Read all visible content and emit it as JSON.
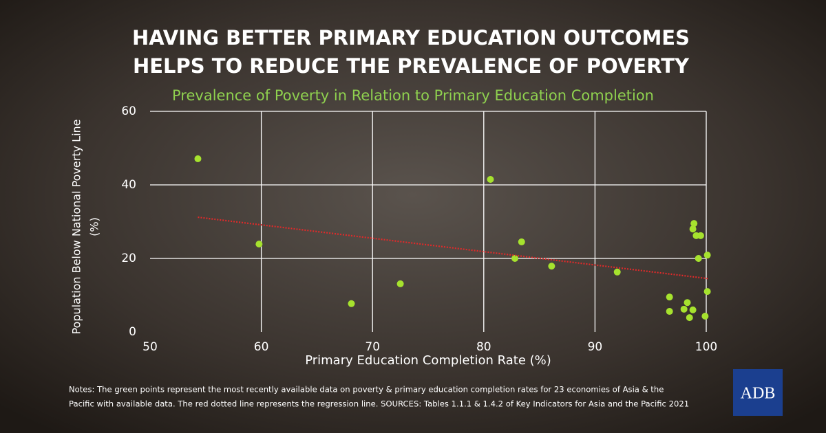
{
  "chart_data": {
    "type": "scatter",
    "title_lines": [
      "HAVING BETTER PRIMARY EDUCATION OUTCOMES",
      "HELPS TO REDUCE THE PREVALENCE OF POVERTY"
    ],
    "subtitle": "Prevalence of Poverty in Relation to Primary Education Completion",
    "xlabel": "Primary Education Completion Rate (%)",
    "ylabel_lines": [
      "Population Below National Poverty Line",
      "(%)"
    ],
    "xlim": [
      50,
      100
    ],
    "xticks": [
      50,
      60,
      70,
      80,
      90,
      100
    ],
    "ylim": [
      0,
      60
    ],
    "yticks": [
      0,
      20,
      40,
      60
    ],
    "grid": true,
    "series": [
      {
        "color": "#a6e22e",
        "x": [
          54.3,
          59.8,
          68.1,
          72.5,
          80.6,
          82.8,
          83.4,
          86.1,
          92.0,
          96.7,
          96.7,
          98.3,
          98.0,
          98.5,
          98.8,
          98.9,
          98.8,
          99.1,
          99.5,
          99.3,
          100.1,
          100.1,
          99.9
        ],
        "values": [
          47.1,
          23.9,
          7.7,
          13.1,
          41.5,
          20,
          24.5,
          17.9,
          16.3,
          9.5,
          5.6,
          8,
          6.2,
          3.9,
          6,
          29.5,
          28,
          26.2,
          26.2,
          20,
          20.9,
          11,
          4.3
        ]
      }
    ],
    "trend": {
      "color": "#e02a2a",
      "x": [
        54.3,
        100.2
      ],
      "values": [
        31.2,
        14.5
      ]
    },
    "notes_lines": [
      "Notes: The green points represent the most recently available data on poverty & primary education completion rates for 23 economies of Asia & the",
      "Pacific with available data. The red dotted line represents the regression line. SOURCES: Tables 1.1.1 & 1.4.2 of Key Indicators for Asia and the Pacific 2021"
    ],
    "logo": "ADB"
  }
}
